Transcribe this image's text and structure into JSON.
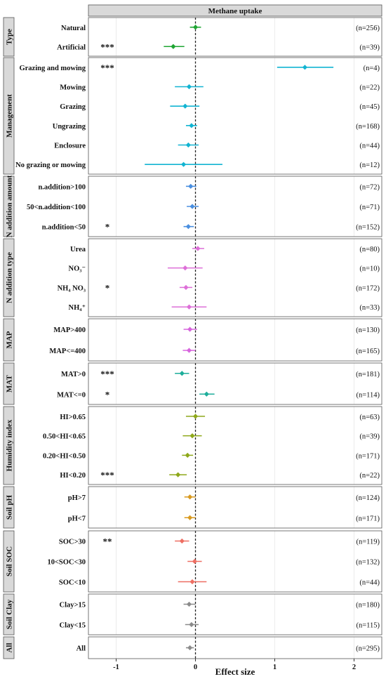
{
  "chart_data": {
    "type": "scatter",
    "subtype": "forest",
    "strip_title": "Methane uptake",
    "xlabel": "Effect size",
    "xlim": [
      -1.35,
      2.35
    ],
    "xticks": [
      -1,
      0,
      1,
      2
    ],
    "xtick_labels": [
      "-1",
      "0",
      "1",
      "2"
    ],
    "reference_line": 0,
    "grid": true,
    "groups": [
      {
        "name": "Type",
        "color": "#1fa533",
        "items": [
          {
            "label": "Natural",
            "mean": 0.0,
            "lo": -0.07,
            "hi": 0.07,
            "n": "(n=256)",
            "sig": ""
          },
          {
            "label": "Artificial",
            "mean": -0.28,
            "lo": -0.4,
            "hi": -0.14,
            "n": "(n=39)",
            "sig": "***"
          }
        ]
      },
      {
        "name": "Management",
        "color": "#12b4d2",
        "items": [
          {
            "label": "Grazing and mowing",
            "mean": 1.38,
            "lo": 1.03,
            "hi": 1.74,
            "n": "(n=4)",
            "sig": "***"
          },
          {
            "label": "Mowing",
            "mean": -0.08,
            "lo": -0.26,
            "hi": 0.1,
            "n": "(n=22)",
            "sig": ""
          },
          {
            "label": "Grazing",
            "mean": -0.13,
            "lo": -0.32,
            "hi": 0.05,
            "n": "(n=45)",
            "sig": ""
          },
          {
            "label": "Ungrazing",
            "mean": -0.05,
            "lo": -0.12,
            "hi": 0.02,
            "n": "(n=168)",
            "sig": ""
          },
          {
            "label": "Enclosure",
            "mean": -0.09,
            "lo": -0.22,
            "hi": 0.04,
            "n": "(n=44)",
            "sig": ""
          },
          {
            "label": "No grazing or mowing",
            "mean": -0.15,
            "lo": -0.64,
            "hi": 0.34,
            "n": "(n=12)",
            "sig": ""
          }
        ]
      },
      {
        "name": "N addition amount",
        "color": "#4a8fe0",
        "items": [
          {
            "label": "n.addition>100",
            "mean": -0.06,
            "lo": -0.12,
            "hi": 0.01,
            "n": "(n=72)",
            "sig": ""
          },
          {
            "label": "50<n.addition<100",
            "mean": -0.04,
            "lo": -0.11,
            "hi": 0.04,
            "n": "(n=71)",
            "sig": ""
          },
          {
            "label": "n.addition<50",
            "mean": -0.09,
            "lo": -0.15,
            "hi": -0.02,
            "n": "(n=152)",
            "sig": "*"
          }
        ]
      },
      {
        "name": "N addition type",
        "color": "#dd6fd8",
        "items": [
          {
            "label": "Urea",
            "mean": 0.03,
            "lo": -0.04,
            "hi": 0.11,
            "n": "(n=80)",
            "sig": ""
          },
          {
            "label": "NO₃⁻",
            "mean": -0.13,
            "lo": -0.35,
            "hi": 0.09,
            "n": "(n=10)",
            "sig": ""
          },
          {
            "label": "NH₄ NO₃",
            "mean": -0.12,
            "lo": -0.2,
            "hi": -0.04,
            "n": "(n=172)",
            "sig": "*"
          },
          {
            "label": "NH₄⁺",
            "mean": -0.08,
            "lo": -0.3,
            "hi": 0.14,
            "n": "(n=33)",
            "sig": ""
          }
        ]
      },
      {
        "name": "MAP",
        "color": "#d765dd",
        "items": [
          {
            "label": "MAP>400",
            "mean": -0.07,
            "lo": -0.15,
            "hi": 0.02,
            "n": "(n=130)",
            "sig": ""
          },
          {
            "label": "MAP<=400",
            "mean": -0.08,
            "lo": -0.16,
            "hi": 0.0,
            "n": "(n=165)",
            "sig": ""
          }
        ]
      },
      {
        "name": "MAT",
        "color": "#1dae9b",
        "items": [
          {
            "label": "MAT>0",
            "mean": -0.17,
            "lo": -0.26,
            "hi": -0.08,
            "n": "(n=181)",
            "sig": "***"
          },
          {
            "label": "MAT<=0",
            "mean": 0.14,
            "lo": 0.05,
            "hi": 0.24,
            "n": "(n=114)",
            "sig": "*"
          }
        ]
      },
      {
        "name": "Humidity index",
        "color": "#8ea81a",
        "items": [
          {
            "label": "HI>0.65",
            "mean": 0.0,
            "lo": -0.12,
            "hi": 0.12,
            "n": "(n=63)",
            "sig": ""
          },
          {
            "label": "0.50<HI<0.65",
            "mean": -0.04,
            "lo": -0.16,
            "hi": 0.08,
            "n": "(n=39)",
            "sig": ""
          },
          {
            "label": "0.20<HI<0.50",
            "mean": -0.1,
            "lo": -0.17,
            "hi": -0.03,
            "n": "(n=171)",
            "sig": ""
          },
          {
            "label": "HI<0.20",
            "mean": -0.22,
            "lo": -0.33,
            "hi": -0.11,
            "n": "(n=22)",
            "sig": "***"
          }
        ]
      },
      {
        "name": "Soil pH",
        "color": "#d99a1f",
        "items": [
          {
            "label": "pH>7",
            "mean": -0.07,
            "lo": -0.14,
            "hi": 0.0,
            "n": "(n=124)",
            "sig": ""
          },
          {
            "label": "pH<7",
            "mean": -0.07,
            "lo": -0.14,
            "hi": 0.0,
            "n": "(n=171)",
            "sig": ""
          }
        ]
      },
      {
        "name": "Soil SOC",
        "color": "#ee6e62",
        "items": [
          {
            "label": "SOC>30",
            "mean": -0.17,
            "lo": -0.26,
            "hi": -0.08,
            "n": "(n=119)",
            "sig": "**"
          },
          {
            "label": "10<SOC<30",
            "mean": -0.01,
            "lo": -0.1,
            "hi": 0.08,
            "n": "(n=132)",
            "sig": ""
          },
          {
            "label": "SOC<10",
            "mean": -0.04,
            "lo": -0.22,
            "hi": 0.14,
            "n": "(n=44)",
            "sig": ""
          }
        ]
      },
      {
        "name": "Soil Clay",
        "color": "#8b8b8b",
        "items": [
          {
            "label": "Clay>15",
            "mean": -0.08,
            "lo": -0.15,
            "hi": 0.0,
            "n": "(n=180)",
            "sig": ""
          },
          {
            "label": "Clay<15",
            "mean": -0.05,
            "lo": -0.13,
            "hi": 0.04,
            "n": "(n=115)",
            "sig": ""
          }
        ]
      },
      {
        "name": "All",
        "color": "#8b8b8b",
        "items": [
          {
            "label": "All",
            "mean": -0.07,
            "lo": -0.12,
            "hi": -0.02,
            "n": "(n=295)",
            "sig": ""
          }
        ]
      }
    ]
  }
}
